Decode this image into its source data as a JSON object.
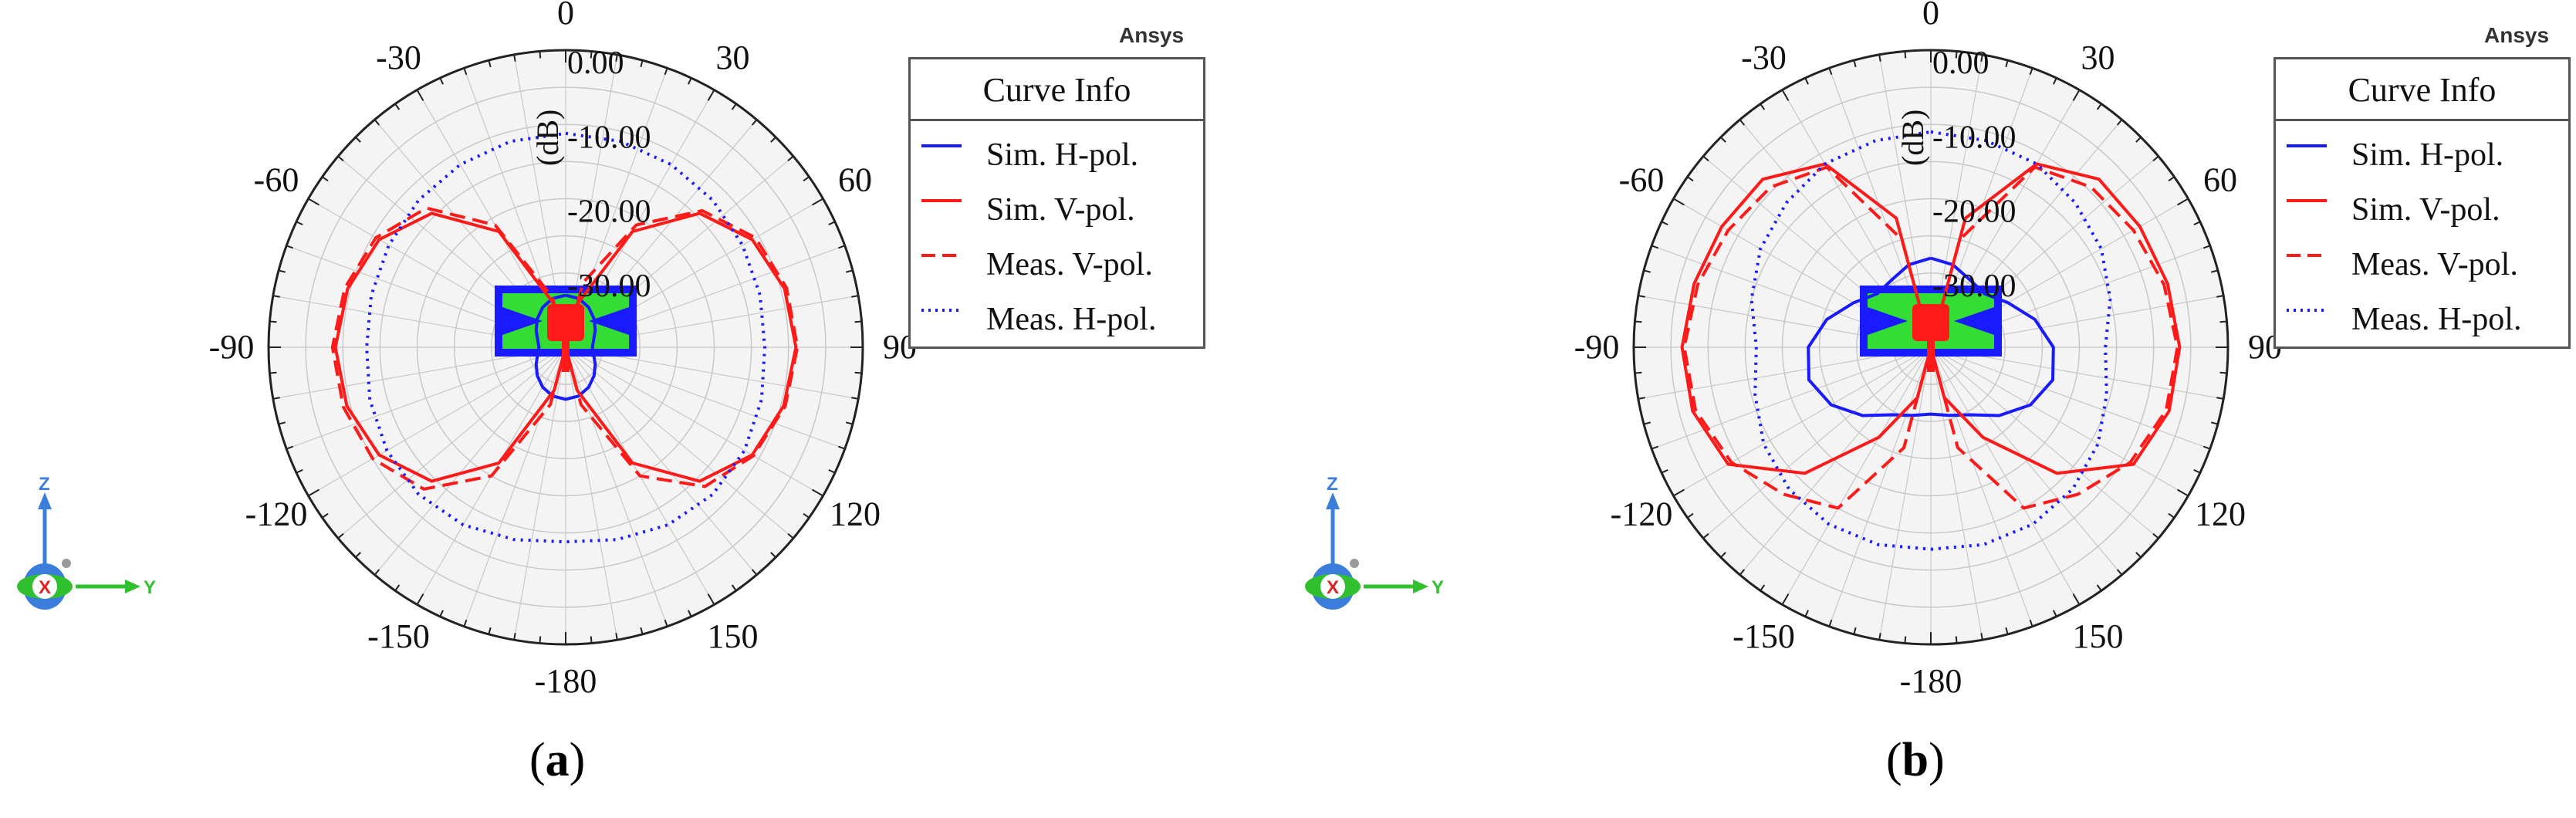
{
  "colors": {
    "sim_h": "#1a1aff",
    "sim_v": "#ff1a1a",
    "meas_v": "#ff1a1a",
    "meas_h": "#1a1aff",
    "grid": "#c8c8c8",
    "disk": "#f4f4f4",
    "antenna_border": "#1a1aff",
    "antenna_fill": "#33dd33",
    "antenna_feed": "#ff1a1a"
  },
  "panels": [
    {
      "id": "a",
      "brand": "Ansys",
      "caption": {
        "open": "(",
        "letter": "a",
        "close": ")"
      },
      "legend_title": "Curve Info",
      "legend": [
        "Sim. H-pol.",
        "Sim. V-pol.",
        "Meas. V-pol.",
        "Meas. H-pol."
      ]
    },
    {
      "id": "b",
      "brand": "Ansys",
      "caption": {
        "open": "(",
        "letter": "b",
        "close": ")"
      },
      "legend_title": "Curve Info",
      "legend": [
        "Sim. H-pol.",
        "Sim. V-pol.",
        "Meas. V-pol.",
        "Meas. H-pol."
      ]
    }
  ],
  "axis_widget": {
    "z": "Z",
    "x": "X",
    "y": "Y"
  },
  "chart_data": [
    {
      "type": "line",
      "subtype": "polar",
      "panel": "a",
      "unit_label": "(dB)",
      "r_ticks": [
        "0.00",
        "-10.00",
        "-20.00",
        "-30.00"
      ],
      "r_range": [
        -40,
        0
      ],
      "angle_ticks": [
        0,
        30,
        60,
        90,
        120,
        150,
        -180,
        -150,
        -120,
        -90,
        -60,
        -30
      ],
      "grid": true,
      "legend_position": "right",
      "angles": [
        0,
        15,
        30,
        45,
        60,
        75,
        90,
        105,
        120,
        135,
        150,
        165,
        180,
        195,
        210,
        225,
        240,
        255,
        270,
        285,
        300,
        315,
        330,
        345
      ],
      "series": [
        {
          "name": "Sim. H-pol.",
          "style": "solid",
          "values": [
            -33,
            -33.2,
            -33.8,
            -34.6,
            -35.4,
            -36.1,
            -36.4,
            -36.1,
            -35.4,
            -34.6,
            -33.8,
            -33.2,
            -33,
            -33.2,
            -33.8,
            -34.6,
            -35.4,
            -36.1,
            -36.4,
            -36.1,
            -35.4,
            -34.6,
            -33.8,
            -33.2
          ]
        },
        {
          "name": "Sim. V-pol.",
          "style": "solid",
          "values": [
            -40,
            -34,
            -22,
            -14.5,
            -11,
            -9.5,
            -9,
            -9.6,
            -11,
            -14.5,
            -22,
            -34,
            -40,
            -34,
            -22,
            -14.5,
            -11,
            -9.5,
            -9,
            -9.6,
            -11,
            -14.5,
            -22,
            -34
          ]
        },
        {
          "name": "Meas. V-pol.",
          "style": "dashed",
          "values": [
            -40,
            -31,
            -21,
            -14,
            -10.5,
            -9.2,
            -8.8,
            -9.4,
            -10.8,
            -13.5,
            -20,
            -32,
            -40,
            -32,
            -20,
            -13,
            -10,
            -9,
            -8.6,
            -9.2,
            -10.5,
            -13.5,
            -21,
            -33
          ]
        },
        {
          "name": "Meas. H-pol.",
          "style": "dotted",
          "values": [
            -11.2,
            -11.3,
            -11.6,
            -12,
            -12.5,
            -12.9,
            -13.2,
            -12.7,
            -12.2,
            -12,
            -12.4,
            -13.2,
            -13.8,
            -13.2,
            -12.4,
            -12,
            -12.2,
            -12.7,
            -13.2,
            -12.9,
            -12.5,
            -12,
            -11.6,
            -11.3
          ]
        }
      ]
    },
    {
      "type": "line",
      "subtype": "polar",
      "panel": "b",
      "unit_label": "(dB)",
      "r_ticks": [
        "0.00",
        "-10.00",
        "-20.00",
        "-30.00"
      ],
      "r_range": [
        -40,
        0
      ],
      "angle_ticks": [
        0,
        30,
        60,
        90,
        120,
        150,
        -180,
        -150,
        -120,
        -90,
        -60,
        -30
      ],
      "grid": true,
      "legend_position": "right",
      "angles": [
        0,
        15,
        30,
        45,
        60,
        75,
        90,
        105,
        120,
        135,
        150,
        165,
        180,
        195,
        210,
        225,
        240,
        255,
        270,
        285,
        300,
        315,
        330,
        345
      ],
      "series": [
        {
          "name": "Sim. H-pol.",
          "style": "solid",
          "values": [
            -28,
            -28.5,
            -29.5,
            -29.8,
            -28,
            -25.5,
            -23.5,
            -23,
            -24.5,
            -27,
            -29.5,
            -30.5,
            -31,
            -30.5,
            -29.5,
            -27,
            -24.5,
            -23,
            -23.5,
            -25.5,
            -28,
            -29.8,
            -29.5,
            -28.5
          ]
        },
        {
          "name": "Sim. V-pol.",
          "style": "solid",
          "values": [
            -40,
            -22,
            -11.5,
            -8,
            -7.5,
            -7,
            -6.5,
            -6.8,
            -8.5,
            -16,
            -26,
            -33,
            -40,
            -33,
            -26,
            -16,
            -8.5,
            -6.8,
            -6.5,
            -7,
            -7.5,
            -8,
            -11.5,
            -22
          ]
        },
        {
          "name": "Meas. V-pol.",
          "style": "dashed",
          "values": [
            -40,
            -25,
            -12,
            -9.5,
            -8.5,
            -7.5,
            -6.8,
            -7.2,
            -9,
            -12,
            -15,
            -26,
            -40,
            -26,
            -15,
            -12,
            -9,
            -7.2,
            -6.8,
            -7.5,
            -8.5,
            -9.5,
            -12,
            -25
          ]
        },
        {
          "name": "Meas. H-pol.",
          "style": "dotted",
          "values": [
            -11,
            -11.2,
            -11.5,
            -12.5,
            -13.5,
            -15,
            -16.5,
            -15.5,
            -14,
            -13,
            -12.5,
            -12.5,
            -12.8,
            -12.5,
            -12.5,
            -13,
            -14,
            -15.5,
            -16.5,
            -15,
            -13.5,
            -12.5,
            -11.5,
            -11.2
          ]
        }
      ]
    }
  ]
}
